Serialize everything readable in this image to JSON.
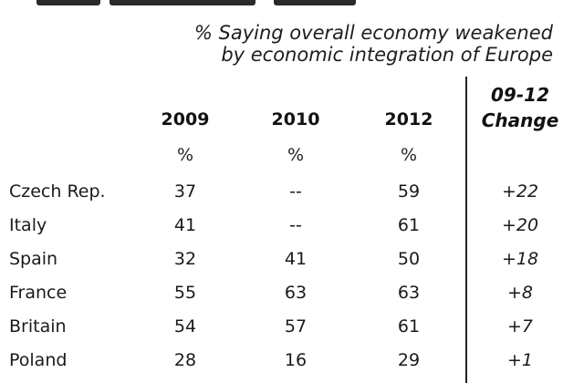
{
  "chart_data": {
    "type": "table",
    "title": "% Saying overall economy weakened by economic integration of Europe",
    "title_lines": [
      "% Saying overall economy weakened",
      "by economic integration of Europe"
    ],
    "columns": [
      "2009",
      "2010",
      "2012"
    ],
    "units": [
      "%",
      "%",
      "%"
    ],
    "change_header": [
      "09-12",
      "Change"
    ],
    "rows": [
      {
        "country": "Czech Rep.",
        "y2009": "37",
        "y2010": "--",
        "y2012": "59",
        "change": "+22"
      },
      {
        "country": "Italy",
        "y2009": "41",
        "y2010": "--",
        "y2012": "61",
        "change": "+20"
      },
      {
        "country": "Spain",
        "y2009": "32",
        "y2010": "41",
        "y2012": "50",
        "change": "+18"
      },
      {
        "country": "France",
        "y2009": "55",
        "y2010": "63",
        "y2012": "63",
        "change": "+8"
      },
      {
        "country": "Britain",
        "y2009": "54",
        "y2010": "57",
        "y2012": "61",
        "change": "+7"
      },
      {
        "country": "Poland",
        "y2009": "28",
        "y2010": "16",
        "y2012": "29",
        "change": "+1"
      }
    ]
  }
}
